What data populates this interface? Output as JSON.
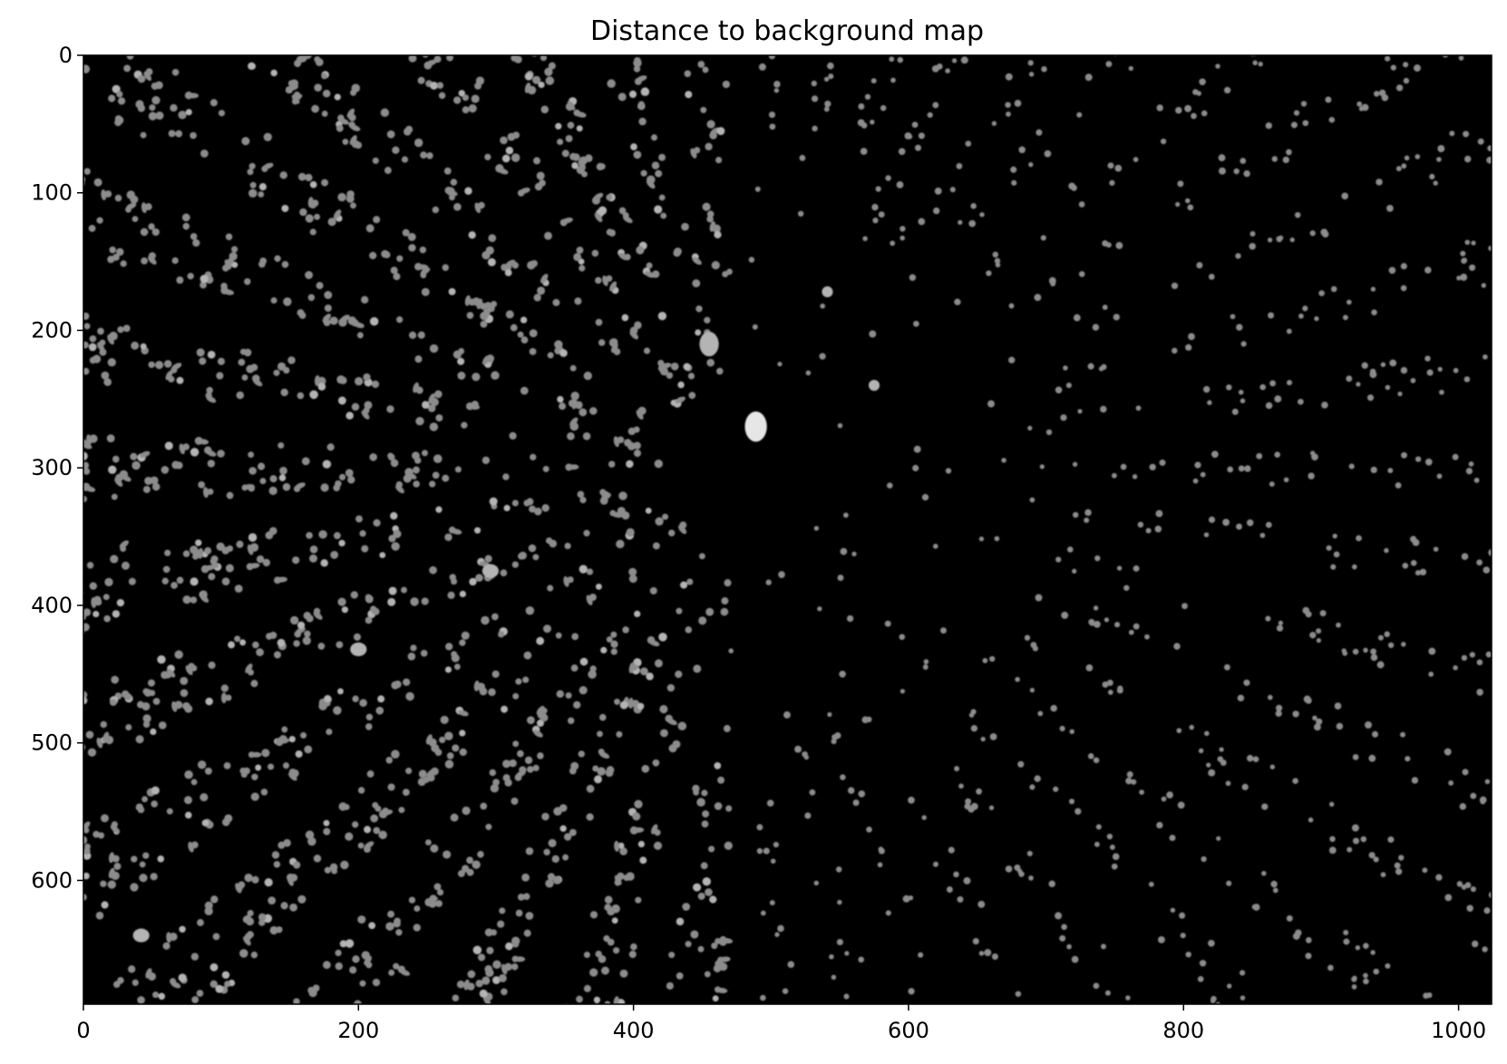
{
  "chart_data": {
    "type": "heatmap",
    "title": "Distance to background map",
    "xlabel": "",
    "ylabel": "",
    "colormap": "gray",
    "xlim": [
      0,
      1024
    ],
    "ylim": [
      690,
      0
    ],
    "y_axis_inverted": true,
    "x_ticks": [
      0,
      200,
      400,
      600,
      800,
      1000
    ],
    "y_ticks": [
      0,
      100,
      200,
      300,
      400,
      500,
      600
    ],
    "x_tick_labels": [
      "0",
      "200",
      "400",
      "600",
      "800",
      "1000"
    ],
    "y_tick_labels": [
      "0",
      "100",
      "200",
      "300",
      "400",
      "500",
      "600"
    ],
    "grid": false,
    "colors": {
      "background": "#000000",
      "blob_dim": "#8c8c8c",
      "blob_mid": "#b4b4b4",
      "blob_bright": "#e6e6e6"
    },
    "bright_blobs": [
      {
        "x": 455,
        "y": 210,
        "rx": 7,
        "ry": 9,
        "value": 0.8
      },
      {
        "x": 489,
        "y": 270,
        "rx": 8,
        "ry": 11,
        "value": 1.0
      },
      {
        "x": 541,
        "y": 172,
        "rx": 4,
        "ry": 4,
        "value": 0.7
      },
      {
        "x": 575,
        "y": 240,
        "rx": 4,
        "ry": 4,
        "value": 0.7
      },
      {
        "x": 296,
        "y": 375,
        "rx": 6,
        "ry": 5,
        "value": 0.75
      },
      {
        "x": 200,
        "y": 432,
        "rx": 6,
        "ry": 5,
        "value": 0.75
      },
      {
        "x": 42,
        "y": 640,
        "rx": 6,
        "ry": 5,
        "value": 0.75
      }
    ]
  }
}
